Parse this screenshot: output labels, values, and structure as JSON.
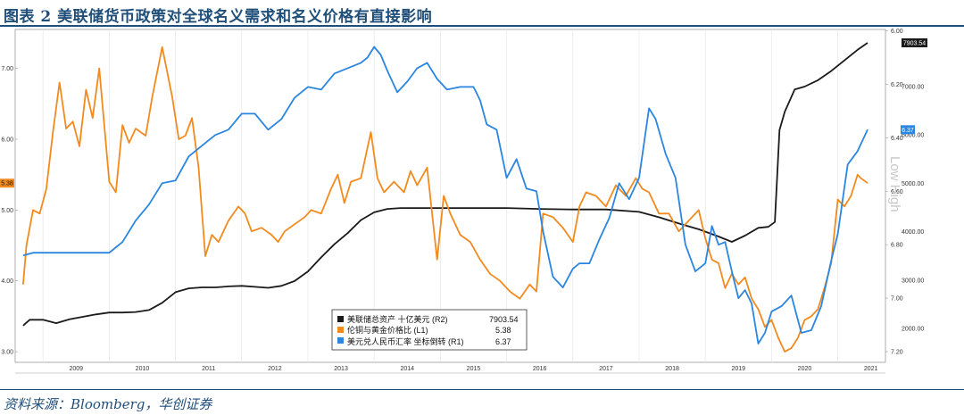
{
  "title": "图表 2 美联储货币政策对全球名义需求和名义价格有直接影响",
  "source": "资料来源：Bloomberg，华创证券",
  "chart_data": {
    "type": "line",
    "x_ticks": [
      "2009",
      "2010",
      "2011",
      "2012",
      "2013",
      "2014",
      "2015",
      "2016",
      "2017",
      "2018",
      "2019",
      "2020",
      "2021"
    ],
    "y_left": {
      "ticks": [
        "3.00",
        "4.00",
        "5.00",
        "6.00",
        "7.00"
      ],
      "range": [
        2.85,
        7.55
      ]
    },
    "y_right_fx": {
      "ticks": [
        "6.00",
        "6.20",
        "6.40",
        "6.60",
        "6.80",
        "7.00",
        "7.20"
      ],
      "range": [
        5.995,
        7.24
      ],
      "inverted": true
    },
    "y_right_assets": {
      "ticks": [
        "2000.00",
        "3000.00",
        "4000.00",
        "5000.00",
        "6000.00",
        "7000.00"
      ],
      "range": [
        1300,
        8180
      ]
    },
    "right_axis_label": "Low    High",
    "legend": [
      {
        "label": "美联储总资产 十亿美元 (R2)",
        "value": "7903.54",
        "color": "#1a1a1a"
      },
      {
        "label": "伦铜与黄金价格比 (L1)",
        "value": "5.38",
        "color": "#f28a1e"
      },
      {
        "label": "美元兑人民币汇率 坐标倒转 (R1)",
        "value": "6.37",
        "color": "#2a86e0"
      }
    ],
    "tags": {
      "left_last": "5.38",
      "right_fx_last": "6.37",
      "right_assets_last": "7903.54"
    },
    "series": [
      {
        "name": "美联储总资产 十亿美元 (R2)",
        "axis": "assets",
        "color": "#1a1a1a",
        "x": [
          2008.7,
          2008.8,
          2009.0,
          2009.2,
          2009.4,
          2009.6,
          2009.8,
          2010.0,
          2010.2,
          2010.4,
          2010.6,
          2010.8,
          2011.0,
          2011.2,
          2011.4,
          2011.6,
          2011.8,
          2012.0,
          2012.2,
          2012.4,
          2012.6,
          2012.8,
          2013.0,
          2013.2,
          2013.4,
          2013.6,
          2013.8,
          2014.0,
          2014.2,
          2014.4,
          2014.6,
          2014.8,
          2015.0,
          2015.5,
          2016.0,
          2016.5,
          2017.0,
          2017.5,
          2018.0,
          2018.3,
          2018.6,
          2018.9,
          2019.2,
          2019.4,
          2019.6,
          2019.8,
          2019.95,
          2020.05,
          2020.12,
          2020.2,
          2020.35,
          2020.5,
          2020.7,
          2020.9,
          2021.1,
          2021.3,
          2021.45
        ],
        "y": [
          2060,
          2180,
          2180,
          2110,
          2190,
          2240,
          2290,
          2330,
          2330,
          2340,
          2380,
          2530,
          2750,
          2830,
          2850,
          2850,
          2870,
          2880,
          2860,
          2840,
          2880,
          2980,
          3180,
          3470,
          3740,
          3970,
          4240,
          4400,
          4470,
          4490,
          4490,
          4490,
          4490,
          4490,
          4490,
          4470,
          4460,
          4460,
          4410,
          4300,
          4170,
          4050,
          3900,
          3790,
          3920,
          4080,
          4100,
          4200,
          6100,
          6480,
          6940,
          7000,
          7130,
          7320,
          7540,
          7760,
          7903.54
        ]
      },
      {
        "name": "伦铜与黄金价格比 (L1)",
        "axis": "left",
        "color": "#f28a1e",
        "x": [
          2008.7,
          2008.75,
          2008.85,
          2008.95,
          2009.05,
          2009.15,
          2009.25,
          2009.35,
          2009.45,
          2009.55,
          2009.65,
          2009.75,
          2009.85,
          2010.0,
          2010.1,
          2010.2,
          2010.3,
          2010.4,
          2010.55,
          2010.65,
          2010.8,
          2010.95,
          2011.05,
          2011.15,
          2011.25,
          2011.35,
          2011.45,
          2011.55,
          2011.65,
          2011.8,
          2011.95,
          2012.05,
          2012.15,
          2012.3,
          2012.45,
          2012.55,
          2012.65,
          2012.8,
          2012.95,
          2013.05,
          2013.2,
          2013.35,
          2013.45,
          2013.55,
          2013.65,
          2013.8,
          2013.95,
          2014.05,
          2014.15,
          2014.3,
          2014.45,
          2014.55,
          2014.65,
          2014.8,
          2014.95,
          2015.05,
          2015.15,
          2015.3,
          2015.45,
          2015.6,
          2015.75,
          2015.9,
          2016.05,
          2016.2,
          2016.35,
          2016.45,
          2016.55,
          2016.7,
          2016.85,
          2017.0,
          2017.1,
          2017.2,
          2017.35,
          2017.5,
          2017.65,
          2017.8,
          2017.95,
          2018.05,
          2018.15,
          2018.3,
          2018.45,
          2018.6,
          2018.75,
          2018.9,
          2019.0,
          2019.1,
          2019.2,
          2019.3,
          2019.4,
          2019.5,
          2019.6,
          2019.7,
          2019.8,
          2019.9,
          2020.0,
          2020.1,
          2020.2,
          2020.3,
          2020.4,
          2020.5,
          2020.6,
          2020.7,
          2020.8,
          2020.9,
          2021.0,
          2021.1,
          2021.2,
          2021.3,
          2021.35,
          2021.45
        ],
        "y": [
          3.95,
          4.5,
          5.0,
          4.95,
          5.3,
          6.1,
          6.8,
          6.15,
          6.25,
          5.9,
          6.7,
          6.3,
          7.0,
          5.4,
          5.25,
          6.2,
          5.95,
          6.15,
          6.05,
          6.6,
          7.3,
          6.6,
          6.0,
          6.05,
          6.3,
          5.6,
          4.35,
          4.65,
          4.55,
          4.85,
          5.05,
          4.95,
          4.7,
          4.75,
          4.65,
          4.55,
          4.7,
          4.8,
          4.9,
          5.0,
          4.95,
          5.3,
          5.5,
          5.1,
          5.4,
          5.45,
          6.1,
          5.45,
          5.25,
          5.4,
          5.25,
          5.55,
          5.35,
          5.6,
          4.3,
          5.2,
          4.95,
          4.65,
          4.55,
          4.3,
          4.1,
          4.0,
          3.85,
          3.75,
          3.95,
          3.85,
          4.95,
          4.9,
          4.75,
          4.55,
          5.05,
          5.25,
          5.2,
          5.05,
          5.35,
          5.2,
          5.45,
          5.3,
          5.25,
          4.95,
          4.95,
          4.7,
          4.85,
          5.0,
          4.6,
          4.3,
          4.25,
          3.9,
          4.1,
          3.95,
          4.05,
          3.75,
          3.6,
          3.35,
          3.45,
          3.2,
          3.0,
          3.05,
          3.2,
          3.45,
          3.5,
          3.6,
          3.9,
          4.25,
          5.15,
          5.05,
          5.2,
          5.5,
          5.45,
          5.38
        ]
      },
      {
        "name": "美元兑人民币汇率 坐标倒转 (R1)",
        "axis": "fx",
        "color": "#2a86e0",
        "x": [
          2008.7,
          2008.85,
          2009.0,
          2009.5,
          2010.0,
          2010.2,
          2010.4,
          2010.6,
          2010.8,
          2011.0,
          2011.2,
          2011.4,
          2011.6,
          2011.8,
          2012.0,
          2012.2,
          2012.4,
          2012.6,
          2012.8,
          2013.0,
          2013.2,
          2013.4,
          2013.6,
          2013.8,
          2013.9,
          2014.0,
          2014.1,
          2014.2,
          2014.35,
          2014.5,
          2014.65,
          2014.8,
          2014.95,
          2015.1,
          2015.3,
          2015.5,
          2015.6,
          2015.7,
          2015.85,
          2016.0,
          2016.15,
          2016.3,
          2016.45,
          2016.55,
          2016.7,
          2016.85,
          2017.0,
          2017.1,
          2017.25,
          2017.4,
          2017.55,
          2017.7,
          2017.85,
          2018.0,
          2018.15,
          2018.25,
          2018.4,
          2018.55,
          2018.7,
          2018.85,
          2019.0,
          2019.1,
          2019.2,
          2019.3,
          2019.4,
          2019.5,
          2019.6,
          2019.7,
          2019.8,
          2019.9,
          2020.0,
          2020.15,
          2020.3,
          2020.45,
          2020.6,
          2020.75,
          2020.9,
          2021.0,
          2021.15,
          2021.3,
          2021.45
        ],
        "y": [
          6.84,
          6.83,
          6.83,
          6.83,
          6.83,
          6.79,
          6.71,
          6.65,
          6.57,
          6.56,
          6.47,
          6.43,
          6.39,
          6.37,
          6.31,
          6.31,
          6.37,
          6.33,
          6.25,
          6.21,
          6.22,
          6.16,
          6.14,
          6.12,
          6.1,
          6.06,
          6.09,
          6.15,
          6.23,
          6.19,
          6.14,
          6.12,
          6.18,
          6.22,
          6.21,
          6.21,
          6.26,
          6.35,
          6.37,
          6.55,
          6.48,
          6.59,
          6.6,
          6.75,
          6.92,
          6.96,
          6.89,
          6.87,
          6.87,
          6.78,
          6.7,
          6.57,
          6.63,
          6.55,
          6.29,
          6.33,
          6.46,
          6.55,
          6.8,
          6.9,
          6.87,
          6.73,
          6.8,
          6.79,
          6.9,
          7.0,
          6.97,
          7.02,
          7.17,
          7.13,
          7.05,
          7.03,
          6.99,
          7.13,
          7.12,
          7.03,
          6.86,
          6.76,
          6.5,
          6.45,
          6.37
        ]
      }
    ]
  }
}
